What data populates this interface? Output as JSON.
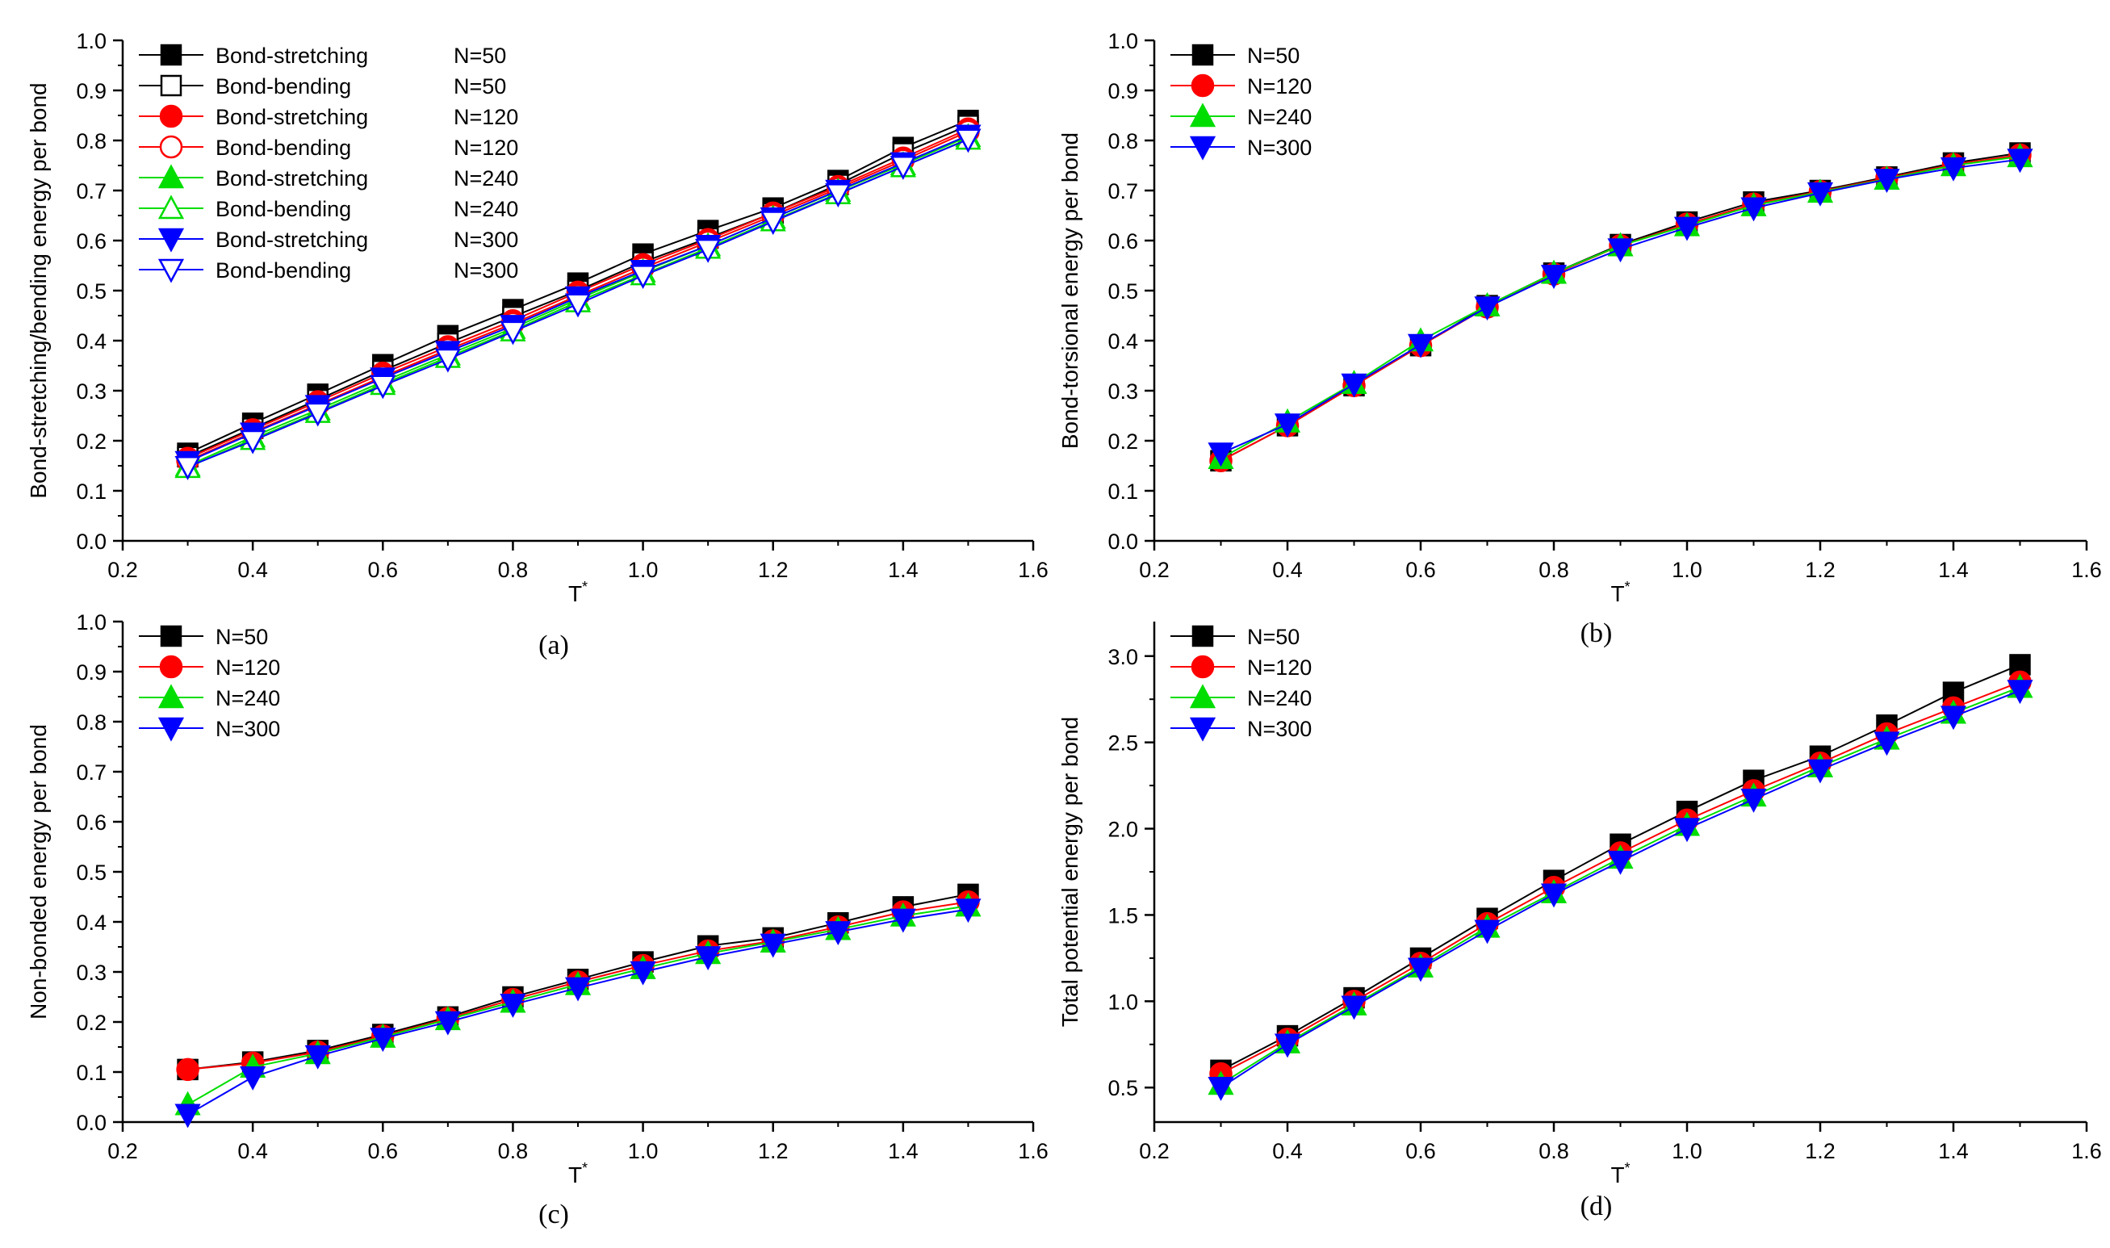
{
  "colors": {
    "black": "#000000",
    "red": "#ff0000",
    "green": "#00dd00",
    "blue": "#0000ff"
  },
  "chart_data": [
    {
      "id": "a",
      "type": "line",
      "panel_label": "(a)",
      "xlabel": "T",
      "xlabel_sup": "*",
      "ylabel": "Bond-stretching/bending energy per bond",
      "xlim": [
        0.2,
        1.6
      ],
      "ylim": [
        0.0,
        1.0
      ],
      "xticks": [
        0.2,
        0.4,
        0.6,
        0.8,
        1.0,
        1.2,
        1.4,
        1.6
      ],
      "xtick_labels": [
        "0.2",
        "0.4",
        "0.6",
        "0.8",
        "1.0",
        "1.2",
        "1.4",
        "1.6"
      ],
      "yticks": [
        0.0,
        0.1,
        0.2,
        0.3,
        0.4,
        0.5,
        0.6,
        0.7,
        0.8,
        0.9,
        1.0
      ],
      "ytick_labels": [
        "0.0",
        "0.1",
        "0.2",
        "0.3",
        "0.4",
        "0.5",
        "0.6",
        "0.7",
        "0.8",
        "0.9",
        "1.0"
      ],
      "x": [
        0.3,
        0.4,
        0.5,
        0.6,
        0.7,
        0.8,
        0.9,
        1.0,
        1.1,
        1.2,
        1.3,
        1.4,
        1.5
      ],
      "legend_position": "top-left",
      "series": [
        {
          "name": "Bond-stretching",
          "n_label": "N=50",
          "color": "black",
          "marker": "square",
          "filled": true,
          "values": [
            0.175,
            0.235,
            0.293,
            0.352,
            0.41,
            0.462,
            0.515,
            0.573,
            0.62,
            0.665,
            0.72,
            0.786,
            0.84
          ]
        },
        {
          "name": "Bond-bending",
          "n_label": "N=50",
          "color": "black",
          "marker": "square",
          "filled": false,
          "values": [
            0.168,
            0.225,
            0.282,
            0.34,
            0.395,
            0.448,
            0.5,
            0.557,
            0.605,
            0.655,
            0.712,
            0.775,
            0.83
          ]
        },
        {
          "name": "Bond-stretching",
          "n_label": "N=120",
          "color": "red",
          "marker": "circle",
          "filled": true,
          "values": [
            0.165,
            0.222,
            0.278,
            0.335,
            0.388,
            0.44,
            0.497,
            0.552,
            0.602,
            0.655,
            0.708,
            0.765,
            0.823
          ]
        },
        {
          "name": "Bond-bending",
          "n_label": "N=120",
          "color": "red",
          "marker": "circle",
          "filled": false,
          "values": [
            0.16,
            0.217,
            0.272,
            0.328,
            0.382,
            0.434,
            0.49,
            0.545,
            0.597,
            0.65,
            0.704,
            0.76,
            0.818
          ]
        },
        {
          "name": "Bond-stretching",
          "n_label": "N=240",
          "color": "green",
          "marker": "triangle-up",
          "filled": true,
          "values": [
            0.15,
            0.208,
            0.262,
            0.318,
            0.372,
            0.425,
            0.483,
            0.538,
            0.59,
            0.645,
            0.699,
            0.752,
            0.808
          ]
        },
        {
          "name": "Bond-bending",
          "n_label": "N=240",
          "color": "green",
          "marker": "triangle-up",
          "filled": false,
          "values": [
            0.147,
            0.203,
            0.257,
            0.313,
            0.367,
            0.42,
            0.478,
            0.532,
            0.585,
            0.64,
            0.694,
            0.748,
            0.803
          ]
        },
        {
          "name": "Bond-stretching",
          "n_label": "N=300",
          "color": "blue",
          "marker": "triangle-down",
          "filled": true,
          "values": [
            0.158,
            0.215,
            0.27,
            0.325,
            0.378,
            0.43,
            0.487,
            0.54,
            0.59,
            0.645,
            0.7,
            0.755,
            0.81
          ]
        },
        {
          "name": "Bond-bending",
          "n_label": "N=300",
          "color": "blue",
          "marker": "triangle-down",
          "filled": false,
          "values": [
            0.148,
            0.2,
            0.255,
            0.31,
            0.363,
            0.418,
            0.473,
            0.53,
            0.582,
            0.638,
            0.693,
            0.748,
            0.802
          ]
        }
      ]
    },
    {
      "id": "b",
      "type": "line",
      "panel_label": "(b)",
      "xlabel": "T",
      "xlabel_sup": "*",
      "ylabel": "Bond-torsional energy per bond",
      "xlim": [
        0.2,
        1.6
      ],
      "ylim": [
        0.0,
        1.0
      ],
      "xticks": [
        0.2,
        0.4,
        0.6,
        0.8,
        1.0,
        1.2,
        1.4,
        1.6
      ],
      "xtick_labels": [
        "0.2",
        "0.4",
        "0.6",
        "0.8",
        "1.0",
        "1.2",
        "1.4",
        "1.6"
      ],
      "yticks": [
        0.0,
        0.1,
        0.2,
        0.3,
        0.4,
        0.5,
        0.6,
        0.7,
        0.8,
        0.9,
        1.0
      ],
      "ytick_labels": [
        "0.0",
        "0.1",
        "0.2",
        "0.3",
        "0.4",
        "0.5",
        "0.6",
        "0.7",
        "0.8",
        "0.9",
        "1.0"
      ],
      "x": [
        0.3,
        0.4,
        0.5,
        0.6,
        0.7,
        0.8,
        0.9,
        1.0,
        1.1,
        1.2,
        1.3,
        1.4,
        1.5
      ],
      "legend_position": "top-left",
      "series": [
        {
          "name": "N=50",
          "color": "black",
          "marker": "square",
          "filled": true,
          "values": [
            0.16,
            0.23,
            0.31,
            0.39,
            0.47,
            0.535,
            0.592,
            0.637,
            0.677,
            0.7,
            0.727,
            0.755,
            0.775
          ]
        },
        {
          "name": "N=120",
          "color": "red",
          "marker": "circle",
          "filled": true,
          "values": [
            0.16,
            0.23,
            0.31,
            0.39,
            0.467,
            0.533,
            0.59,
            0.633,
            0.673,
            0.698,
            0.725,
            0.752,
            0.771
          ]
        },
        {
          "name": "N=240",
          "color": "green",
          "marker": "triangle-up",
          "filled": true,
          "values": [
            0.165,
            0.238,
            0.315,
            0.4,
            0.47,
            0.535,
            0.59,
            0.63,
            0.67,
            0.697,
            0.723,
            0.75,
            0.768
          ]
        },
        {
          "name": "N=300",
          "color": "blue",
          "marker": "triangle-down",
          "filled": true,
          "values": [
            0.175,
            0.233,
            0.313,
            0.392,
            0.467,
            0.53,
            0.583,
            0.626,
            0.665,
            0.695,
            0.722,
            0.745,
            0.762
          ]
        }
      ]
    },
    {
      "id": "c",
      "type": "line",
      "panel_label": "(c)",
      "xlabel": "T",
      "xlabel_sup": "*",
      "ylabel": "Non-bonded energy per bond",
      "xlim": [
        0.2,
        1.6
      ],
      "ylim": [
        0.0,
        1.0
      ],
      "xticks": [
        0.2,
        0.4,
        0.6,
        0.8,
        1.0,
        1.2,
        1.4,
        1.6
      ],
      "xtick_labels": [
        "0.2",
        "0.4",
        "0.6",
        "0.8",
        "1.0",
        "1.2",
        "1.4",
        "1.6"
      ],
      "yticks": [
        0.0,
        0.1,
        0.2,
        0.3,
        0.4,
        0.5,
        0.6,
        0.7,
        0.8,
        0.9,
        1.0
      ],
      "ytick_labels": [
        "0.0",
        "0.1",
        "0.2",
        "0.3",
        "0.4",
        "0.5",
        "0.6",
        "0.7",
        "0.8",
        "0.9",
        "1.0"
      ],
      "x": [
        0.3,
        0.4,
        0.5,
        0.6,
        0.7,
        0.8,
        0.9,
        1.0,
        1.1,
        1.2,
        1.3,
        1.4,
        1.5
      ],
      "legend_position": "top-left",
      "series": [
        {
          "name": "N=50",
          "color": "black",
          "marker": "square",
          "filled": true,
          "values": [
            0.105,
            0.12,
            0.143,
            0.175,
            0.21,
            0.25,
            0.285,
            0.32,
            0.352,
            0.368,
            0.398,
            0.43,
            0.455
          ]
        },
        {
          "name": "N=120",
          "color": "red",
          "marker": "circle",
          "filled": true,
          "values": [
            0.105,
            0.118,
            0.14,
            0.172,
            0.207,
            0.245,
            0.28,
            0.313,
            0.342,
            0.362,
            0.39,
            0.42,
            0.44
          ]
        },
        {
          "name": "N=240",
          "color": "green",
          "marker": "triangle-up",
          "filled": true,
          "values": [
            0.035,
            0.11,
            0.137,
            0.17,
            0.205,
            0.24,
            0.275,
            0.307,
            0.337,
            0.36,
            0.385,
            0.412,
            0.432
          ]
        },
        {
          "name": "N=300",
          "color": "blue",
          "marker": "triangle-down",
          "filled": true,
          "values": [
            0.015,
            0.09,
            0.132,
            0.167,
            0.2,
            0.235,
            0.268,
            0.3,
            0.33,
            0.355,
            0.38,
            0.405,
            0.425
          ]
        }
      ]
    },
    {
      "id": "d",
      "type": "line",
      "panel_label": "(d)",
      "xlabel": "T",
      "xlabel_sup": "*",
      "ylabel": "Total potential energy per bond",
      "xlim": [
        0.2,
        1.6
      ],
      "ylim": [
        0.3,
        3.2
      ],
      "xticks": [
        0.2,
        0.4,
        0.6,
        0.8,
        1.0,
        1.2,
        1.4,
        1.6
      ],
      "xtick_labels": [
        "0.2",
        "0.4",
        "0.6",
        "0.8",
        "1.0",
        "1.2",
        "1.4",
        "1.6"
      ],
      "yticks": [
        0.5,
        1.0,
        1.5,
        2.0,
        2.5,
        3.0
      ],
      "ytick_labels": [
        "0.5",
        "1.0",
        "1.5",
        "2.0",
        "2.5",
        "3.0"
      ],
      "x": [
        0.3,
        0.4,
        0.5,
        0.6,
        0.7,
        0.8,
        0.9,
        1.0,
        1.1,
        1.2,
        1.3,
        1.4,
        1.5
      ],
      "legend_position": "top-left",
      "series": [
        {
          "name": "N=50",
          "color": "black",
          "marker": "square",
          "filled": true,
          "values": [
            0.6,
            0.8,
            1.02,
            1.25,
            1.48,
            1.7,
            1.91,
            2.1,
            2.28,
            2.42,
            2.6,
            2.79,
            2.95
          ]
        },
        {
          "name": "N=120",
          "color": "red",
          "marker": "circle",
          "filled": true,
          "values": [
            0.58,
            0.78,
            1.0,
            1.22,
            1.45,
            1.66,
            1.86,
            2.05,
            2.22,
            2.38,
            2.55,
            2.7,
            2.85
          ]
        },
        {
          "name": "N=240",
          "color": "green",
          "marker": "triangle-up",
          "filled": true,
          "values": [
            0.52,
            0.76,
            0.98,
            1.2,
            1.43,
            1.63,
            1.83,
            2.02,
            2.19,
            2.36,
            2.52,
            2.67,
            2.82
          ]
        },
        {
          "name": "N=300",
          "color": "blue",
          "marker": "triangle-down",
          "filled": true,
          "values": [
            0.5,
            0.75,
            0.97,
            1.19,
            1.41,
            1.62,
            1.81,
            2.0,
            2.17,
            2.34,
            2.5,
            2.65,
            2.8
          ]
        }
      ]
    }
  ]
}
